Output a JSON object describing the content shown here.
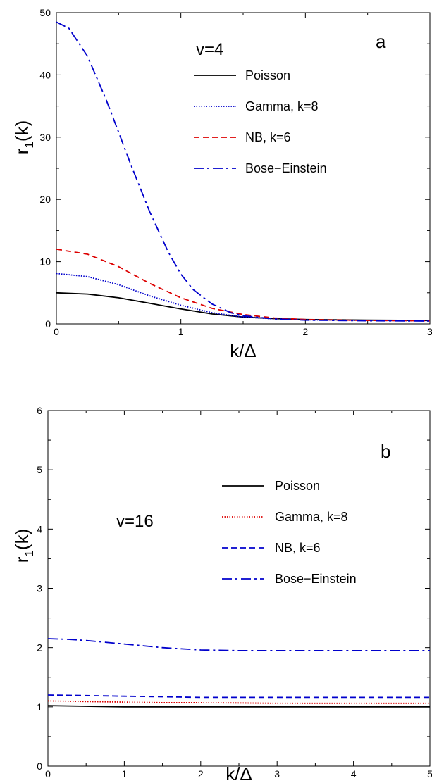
{
  "chart_data": [
    {
      "type": "line",
      "panel_label": "a",
      "parameter_label": "v=4",
      "xlabel": "k/Δ",
      "ylabel": "r1(k)",
      "ylabel_main": "r",
      "ylabel_sub": "1",
      "ylabel_arg": "(k)",
      "xlim": [
        0,
        3
      ],
      "ylim": [
        0,
        50
      ],
      "xticks": [
        0,
        1,
        2,
        3
      ],
      "yticks": [
        0,
        10,
        20,
        30,
        40,
        50
      ],
      "legend_position": "top-right",
      "grid": false,
      "series": [
        {
          "name": "Poisson",
          "color": "#000000",
          "dash": "solid",
          "x": [
            0,
            0.25,
            0.5,
            0.75,
            1.0,
            1.25,
            1.5,
            1.75,
            2.0,
            2.5,
            3.0
          ],
          "y": [
            5.0,
            4.8,
            4.2,
            3.3,
            2.4,
            1.6,
            1.1,
            0.85,
            0.7,
            0.6,
            0.55
          ]
        },
        {
          "name": "Gamma, k=8",
          "color": "#0000cc",
          "dash": "dot",
          "x": [
            0,
            0.25,
            0.5,
            0.75,
            1.0,
            1.25,
            1.5,
            1.75,
            2.0,
            2.5,
            3.0
          ],
          "y": [
            8.1,
            7.6,
            6.3,
            4.5,
            3.0,
            1.8,
            1.1,
            0.8,
            0.65,
            0.55,
            0.5
          ]
        },
        {
          "name": "NB, k=6",
          "color": "#dd0000",
          "dash": "dash",
          "x": [
            0,
            0.25,
            0.5,
            0.75,
            1.0,
            1.25,
            1.5,
            1.75,
            2.0,
            2.5,
            3.0
          ],
          "y": [
            12.0,
            11.2,
            9.2,
            6.5,
            4.2,
            2.5,
            1.5,
            0.95,
            0.7,
            0.55,
            0.5
          ]
        },
        {
          "name": "Bose−Einstein",
          "color": "#0000cc",
          "dash": "dashdot",
          "x": [
            0,
            0.1,
            0.25,
            0.4,
            0.5,
            0.6,
            0.75,
            0.9,
            1.0,
            1.1,
            1.25,
            1.4,
            1.5,
            1.75,
            2.0,
            2.5,
            3.0
          ],
          "y": [
            48.5,
            47.5,
            43.0,
            36.0,
            30.8,
            25.5,
            18.0,
            11.5,
            8.0,
            5.5,
            3.2,
            1.8,
            1.3,
            0.8,
            0.6,
            0.5,
            0.45
          ]
        }
      ]
    },
    {
      "type": "line",
      "panel_label": "b",
      "parameter_label": "v=16",
      "xlabel": "k/Δ",
      "ylabel": "r1(k)",
      "ylabel_main": "r",
      "ylabel_sub": "1",
      "ylabel_arg": "(k)",
      "xlim": [
        0,
        5
      ],
      "ylim": [
        0,
        6
      ],
      "xticks": [
        0,
        1,
        2,
        3,
        4,
        5
      ],
      "yticks": [
        0,
        1,
        2,
        3,
        4,
        5,
        6
      ],
      "legend_position": "top-right",
      "grid": false,
      "series": [
        {
          "name": "Poisson",
          "color": "#000000",
          "dash": "solid",
          "x": [
            0,
            0.5,
            1,
            1.5,
            2,
            3,
            4,
            5
          ],
          "y": [
            1.02,
            1.01,
            1.0,
            1.0,
            1.0,
            1.0,
            1.0,
            1.0
          ]
        },
        {
          "name": "Gamma, k=8",
          "color": "#dd0000",
          "dash": "dot",
          "x": [
            0,
            0.5,
            1,
            1.5,
            2,
            3,
            4,
            5
          ],
          "y": [
            1.1,
            1.09,
            1.08,
            1.07,
            1.07,
            1.06,
            1.06,
            1.06
          ]
        },
        {
          "name": "NB, k=6",
          "color": "#0000cc",
          "dash": "dash",
          "x": [
            0,
            0.5,
            1,
            1.5,
            2,
            3,
            4,
            5
          ],
          "y": [
            1.2,
            1.19,
            1.18,
            1.17,
            1.16,
            1.16,
            1.16,
            1.16
          ]
        },
        {
          "name": "Bose−Einstein",
          "color": "#0000cc",
          "dash": "dashdot",
          "x": [
            0,
            0.25,
            0.5,
            0.75,
            1.0,
            1.25,
            1.5,
            1.75,
            2.0,
            2.5,
            3.0,
            4.0,
            5.0
          ],
          "y": [
            2.15,
            2.14,
            2.12,
            2.09,
            2.06,
            2.03,
            2.0,
            1.98,
            1.96,
            1.95,
            1.95,
            1.95,
            1.95
          ]
        }
      ]
    }
  ]
}
